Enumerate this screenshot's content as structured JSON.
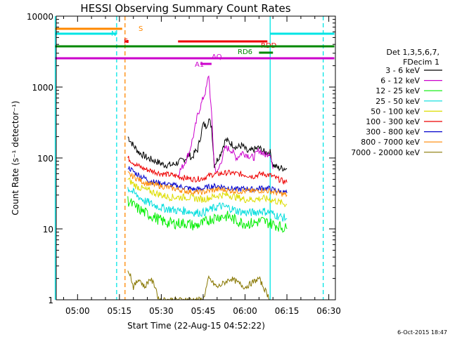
{
  "chart_data": {
    "type": "line",
    "title": "HESSI Observing Summary Count Rates",
    "xlabel": "Start Time (22-Aug-15 04:52:22)",
    "ylabel": "Count Rate (s⁻¹ detector⁻¹)",
    "x_ticks": [
      "05:00",
      "05:15",
      "05:30",
      "05:45",
      "06:00",
      "06:15",
      "06:30"
    ],
    "y_ticks": [
      "1",
      "10",
      "100",
      "1000",
      "10000"
    ],
    "y_scale": "log",
    "ylim": [
      1,
      10000
    ],
    "xlim": [
      "04:52:22",
      "06:32:22"
    ],
    "footer": "6-Oct-2015 18:47",
    "legend": {
      "title_lines": [
        "Det 1,3,5,6,7,",
        "FDecim 1"
      ],
      "entries": [
        {
          "label": "3 - 6 keV",
          "color": "#000000"
        },
        {
          "label": "6 - 12 keV",
          "color": "#cc00cc"
        },
        {
          "label": "12 - 25 keV",
          "color": "#00ee00"
        },
        {
          "label": "25 - 50 keV",
          "color": "#00dddd"
        },
        {
          "label": "50 - 100 keV",
          "color": "#dddd00"
        },
        {
          "label": "100 - 300 keV",
          "color": "#ee0000"
        },
        {
          "label": "300 - 800 keV",
          "color": "#0000cc"
        },
        {
          "label": "800 - 7000 keV",
          "color": "#ff8800"
        },
        {
          "label": "7000 - 20000 keV",
          "color": "#887700"
        }
      ]
    },
    "series": [
      {
        "name": "3 - 6 keV",
        "color": "#000000",
        "x": [
          "05:18",
          "05:20",
          "05:22",
          "05:25",
          "05:28",
          "05:31",
          "05:34",
          "05:37",
          "05:39",
          "05:40",
          "05:41",
          "05:42",
          "05:43",
          "05:45",
          "05:46",
          "05:47",
          "05:48",
          "05:49",
          "05:51",
          "05:53",
          "05:55",
          "05:57",
          "05:59",
          "06:01",
          "06:03",
          "06:05",
          "06:07",
          "06:09",
          "06:10",
          "06:12",
          "06:14",
          "06:15"
        ],
        "y": [
          200,
          150,
          120,
          100,
          90,
          80,
          80,
          90,
          100,
          110,
          100,
          120,
          130,
          300,
          280,
          350,
          280,
          80,
          110,
          180,
          160,
          140,
          150,
          120,
          130,
          140,
          120,
          120,
          80,
          72,
          72,
          70
        ]
      },
      {
        "name": "6 - 12 keV",
        "color": "#cc00cc",
        "x": [
          "05:36",
          "05:38",
          "05:40",
          "05:42",
          "05:43",
          "05:45",
          "05:46",
          "05:47",
          "05:48",
          "05:49",
          "05:50",
          "05:51",
          "05:53",
          "05:55",
          "05:57",
          "05:59",
          "06:01",
          "06:03",
          "06:05",
          "06:07",
          "06:09",
          "06:10"
        ],
        "y": [
          60,
          80,
          120,
          250,
          400,
          700,
          900,
          1500,
          400,
          80,
          60,
          80,
          140,
          130,
          100,
          120,
          110,
          100,
          130,
          110,
          120,
          70
        ]
      },
      {
        "name": "100 - 300 keV",
        "color": "#ee0000",
        "x": [
          "05:18",
          "05:21",
          "05:24",
          "05:27",
          "05:30",
          "05:33",
          "05:36",
          "05:39",
          "05:42",
          "05:45",
          "05:48",
          "05:51",
          "05:54",
          "05:57",
          "06:00",
          "06:03",
          "06:06",
          "06:09",
          "06:12",
          "06:15"
        ],
        "y": [
          100,
          80,
          70,
          65,
          60,
          58,
          55,
          52,
          50,
          52,
          58,
          60,
          62,
          60,
          58,
          55,
          60,
          57,
          50,
          45
        ]
      },
      {
        "name": "300 - 800 keV",
        "color": "#0000cc",
        "x": [
          "05:18",
          "05:21",
          "05:24",
          "05:27",
          "05:30",
          "05:33",
          "05:36",
          "05:39",
          "05:42",
          "05:45",
          "05:48",
          "05:51",
          "05:54",
          "05:57",
          "06:00",
          "06:03",
          "06:06",
          "06:09",
          "06:12",
          "06:15"
        ],
        "y": [
          75,
          60,
          52,
          46,
          44,
          42,
          40,
          38,
          36,
          37,
          40,
          40,
          38,
          36,
          37,
          36,
          38,
          37,
          34,
          32
        ]
      },
      {
        "name": "800 - 7000 keV",
        "color": "#ff8800",
        "x": [
          "05:18",
          "05:21",
          "05:24",
          "05:27",
          "05:30",
          "05:33",
          "05:36",
          "05:39",
          "05:42",
          "05:45",
          "05:48",
          "05:51",
          "05:54",
          "05:57",
          "06:00",
          "06:03",
          "06:06",
          "06:09",
          "06:12",
          "06:15"
        ],
        "y": [
          60,
          52,
          45,
          42,
          40,
          38,
          36,
          34,
          33,
          33,
          35,
          36,
          35,
          34,
          34,
          34,
          35,
          34,
          32,
          30
        ]
      },
      {
        "name": "50 - 100 keV",
        "color": "#dddd00",
        "x": [
          "05:18",
          "05:21",
          "05:24",
          "05:27",
          "05:30",
          "05:33",
          "05:36",
          "05:39",
          "05:42",
          "05:45",
          "05:48",
          "05:51",
          "05:54",
          "05:57",
          "06:00",
          "06:03",
          "06:06",
          "06:09",
          "06:12",
          "06:15"
        ],
        "y": [
          50,
          40,
          36,
          33,
          30,
          28,
          28,
          28,
          27,
          26,
          28,
          30,
          30,
          28,
          26,
          26,
          27,
          26,
          24,
          22
        ]
      },
      {
        "name": "25 - 50 keV",
        "color": "#00dddd",
        "x": [
          "05:18",
          "05:21",
          "05:24",
          "05:27",
          "05:30",
          "05:33",
          "05:36",
          "05:39",
          "05:42",
          "05:45",
          "05:48",
          "05:51",
          "05:54",
          "05:57",
          "06:00",
          "06:03",
          "06:06",
          "06:09",
          "06:12",
          "06:15"
        ],
        "y": [
          38,
          30,
          25,
          22,
          20,
          19,
          18,
          18,
          17,
          17,
          19,
          21,
          20,
          18,
          17,
          17,
          18,
          17,
          15,
          14
        ]
      },
      {
        "name": "12 - 25 keV",
        "color": "#00ee00",
        "x": [
          "05:18",
          "05:21",
          "05:24",
          "05:27",
          "05:30",
          "05:33",
          "05:36",
          "05:39",
          "05:42",
          "05:45",
          "05:48",
          "05:51",
          "05:54",
          "05:57",
          "06:00",
          "06:03",
          "06:06",
          "06:09",
          "06:12",
          "06:15"
        ],
        "y": [
          25,
          20,
          17,
          15,
          13,
          12,
          12,
          12,
          11,
          12,
          14,
          15,
          15,
          13,
          12,
          12,
          13,
          12,
          11,
          10
        ]
      },
      {
        "name": "7000 - 20000 keV",
        "color": "#887700",
        "x": [
          "05:18",
          "05:19",
          "05:20",
          "05:22",
          "05:24",
          "05:26",
          "05:28",
          "05:29",
          "05:45",
          "05:47",
          "05:50",
          "05:55",
          "06:00",
          "06:05",
          "06:09"
        ],
        "y": [
          2.8,
          2.2,
          1.5,
          2,
          1.5,
          2,
          1.5,
          1,
          1,
          2,
          1.5,
          2,
          1.5,
          2,
          1
        ]
      }
    ],
    "status_bars": [
      {
        "label": "S",
        "color": "#ff8800",
        "start": "04:52",
        "end": "05:16"
      },
      {
        "label": "N",
        "color": "#00e5e5",
        "start": "04:52",
        "end": "05:14"
      },
      {
        "label": "N",
        "color": "#00e5e5",
        "start": "06:09",
        "end": "06:32"
      },
      {
        "label": "F",
        "color": "#ee0000",
        "start": "05:17",
        "end": "05:18"
      },
      {
        "label": "RDD",
        "color": "#ee0000",
        "start": "05:36",
        "end": "06:08"
      },
      {
        "label": "RD6",
        "color": "#008800",
        "start": "06:05",
        "end": "06:10"
      },
      {
        "label": "",
        "color": "#008800",
        "start": "04:52",
        "end": "06:32"
      },
      {
        "label": "AQ",
        "color": "#cc00cc",
        "start": "04:52",
        "end": "06:32"
      },
      {
        "label": "A1",
        "color": "#cc00cc",
        "start": "05:44",
        "end": "05:48"
      }
    ],
    "vertical_markers": [
      {
        "time": "04:52",
        "color": "#00e5e5",
        "style": "solid"
      },
      {
        "time": "05:14",
        "color": "#00e5e5",
        "style": "dashed"
      },
      {
        "time": "05:17",
        "color": "#ff8800",
        "style": "dashed"
      },
      {
        "time": "06:09",
        "color": "#00e5e5",
        "style": "solid"
      },
      {
        "time": "06:28",
        "color": "#00e5e5",
        "style": "dashed"
      }
    ],
    "grid": false
  }
}
